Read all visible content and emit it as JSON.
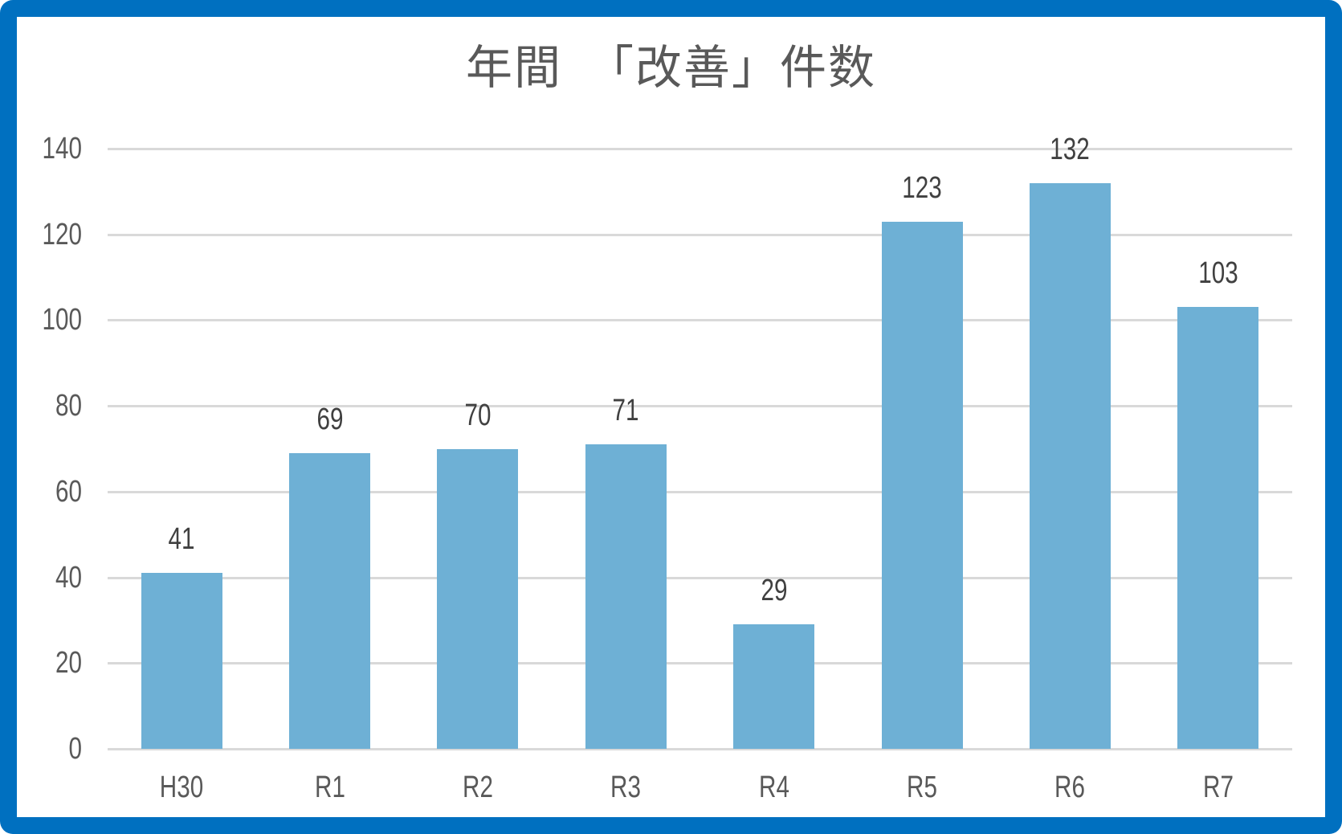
{
  "colors": {
    "border": "#0070C0",
    "bar": "#6EB0D5",
    "gridline": "#D9D9D9",
    "text": "#595959",
    "data_label": "#404040"
  },
  "chart_data": {
    "type": "bar",
    "title": "年間　「改善」件数",
    "categories": [
      "H30",
      "R1",
      "R2",
      "R3",
      "R4",
      "R5",
      "R6",
      "R7"
    ],
    "values": [
      41,
      69,
      70,
      71,
      29,
      123,
      132,
      103
    ],
    "xlabel": "",
    "ylabel": "",
    "ylim": [
      0,
      140
    ],
    "yticks": [
      0,
      20,
      40,
      60,
      80,
      100,
      120,
      140
    ],
    "grid": true,
    "legend": null,
    "data_labels": true
  }
}
